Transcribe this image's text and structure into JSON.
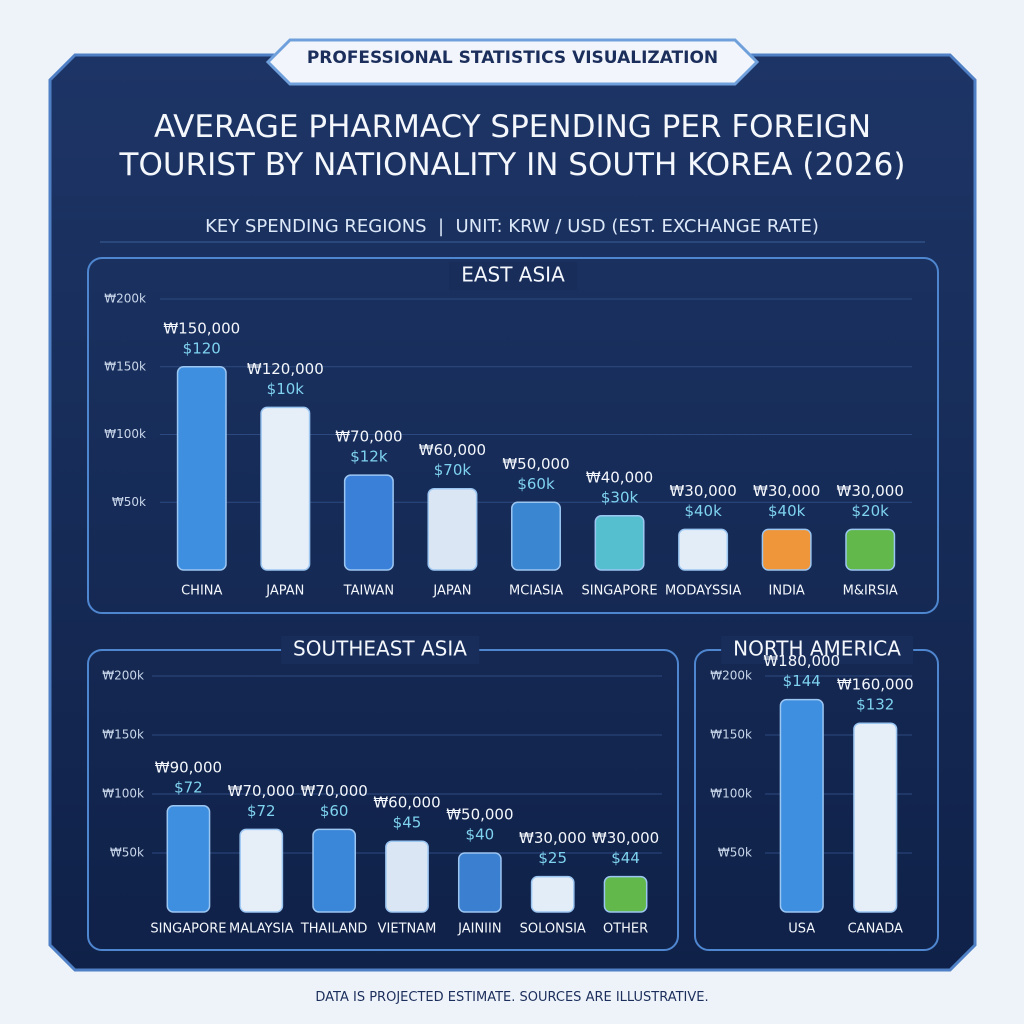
{
  "header": {
    "badge": "PROFESSIONAL STATISTICS VISUALIZATION",
    "title": "AVERAGE PHARMACY SPENDING PER FOREIGN TOURIST BY NATIONALITY IN SOUTH KOREA (2026)",
    "subtitle": "KEY SPENDING REGIONS  |  UNIT: KRW / USD (EST. EXCHANGE RATE)"
  },
  "footer": "DATA IS PROJECTED ESTIMATE. SOURCES ARE ILLUSTRATIVE.",
  "chart_data": [
    {
      "type": "bar",
      "title": "EAST ASIA",
      "categories": [
        "CHINA",
        "JAPAN",
        "TAIWAN",
        "JAPAN",
        "MCIASIA",
        "SINGAPORE",
        "MODAYSSIA",
        "INDIA",
        "M&IRSIA"
      ],
      "values": [
        150000,
        120000,
        70000,
        60000,
        50000,
        40000,
        30000,
        30000,
        30000
      ],
      "value_labels": [
        "₩150,000",
        "₩120,000",
        "₩70,000",
        "₩60,000",
        "₩50,000",
        "₩40,000",
        "₩30,000",
        "₩30,000",
        "₩30,000"
      ],
      "usd_labels": [
        "$120",
        "$10k",
        "$12k",
        "$70k",
        "$60k",
        "$30k",
        "$40k",
        "$40k",
        "$20k"
      ],
      "colors": [
        "#3f8fe0",
        "#e6eef8",
        "#3a7fd8",
        "#dbe6f4",
        "#3a86d0",
        "#56bfcf",
        "#e3edf8",
        "#f0963a",
        "#62b84a"
      ],
      "ylim": [
        0,
        200000
      ],
      "yticks": [
        {
          "value": 50000,
          "label": "₩50k"
        },
        {
          "value": 100000,
          "label": "₩100k"
        },
        {
          "value": 150000,
          "label": "₩150k"
        },
        {
          "value": 200000,
          "label": "₩200k"
        }
      ]
    },
    {
      "type": "bar",
      "title": "SOUTHEAST ASIA",
      "categories": [
        "SINGAPORE",
        "MALAYSIA",
        "THAILAND",
        "VIETNAM",
        "JAINIIN",
        "SOLONSIA",
        "OTHER"
      ],
      "values": [
        90000,
        70000,
        70000,
        60000,
        50000,
        30000,
        30000
      ],
      "value_labels": [
        "₩90,000",
        "₩70,000",
        "₩70,000",
        "₩60,000",
        "₩50,000",
        "₩30,000",
        "₩30,000"
      ],
      "usd_labels": [
        "$72",
        "$72",
        "$60",
        "$45",
        "$40",
        "$25",
        "$44"
      ],
      "colors": [
        "#3f8fe0",
        "#e6eef8",
        "#3a86d8",
        "#dbe6f4",
        "#3a7fd0",
        "#e3edf8",
        "#62b84a"
      ],
      "ylim": [
        0,
        200000
      ],
      "yticks": [
        {
          "value": 50000,
          "label": "₩50k"
        },
        {
          "value": 100000,
          "label": "₩100k"
        },
        {
          "value": 150000,
          "label": "₩150k"
        },
        {
          "value": 200000,
          "label": "₩200k"
        }
      ]
    },
    {
      "type": "bar",
      "title": "NORTH AMERICA",
      "categories": [
        "USA",
        "CANADA"
      ],
      "values": [
        180000,
        160000
      ],
      "value_labels": [
        "₩180,000",
        "₩160,000"
      ],
      "usd_labels": [
        "$144",
        "$132"
      ],
      "colors": [
        "#3f8fe0",
        "#e6eef8"
      ],
      "ylim": [
        0,
        200000
      ],
      "yticks": [
        {
          "value": 50000,
          "label": "₩50k"
        },
        {
          "value": 100000,
          "label": "₩100k"
        },
        {
          "value": 150000,
          "label": "₩150k"
        },
        {
          "value": 200000,
          "label": "₩200k"
        }
      ]
    }
  ]
}
